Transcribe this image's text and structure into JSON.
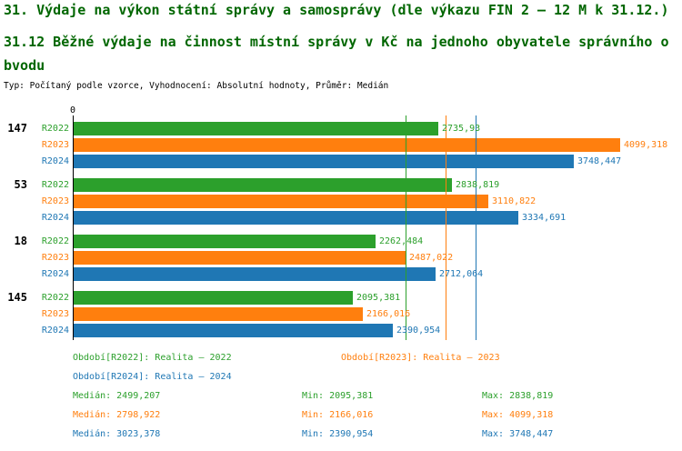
{
  "header": {
    "title": "31. Výdaje na výkon státní správy a samosprávy (dle výkazu FIN 2 – 12 M k 31.12.)",
    "subtitle": "31.12 Běžné výdaje na činnost místní správy v Kč na jednoho obyvatele správního obvodu",
    "meta": "Typ: Počítaný podle vzorce, Vyhodnocení: Absolutní hodnoty, Průměr: Medián"
  },
  "colors": {
    "title": "#006600",
    "axis": "#000000",
    "r2022": "#2ca02c",
    "r2023": "#ff7f0e",
    "r2024": "#1f77b4"
  },
  "chart_data": {
    "type": "bar",
    "orientation": "horizontal",
    "title": "31.12 Běžné výdaje na činnost místní správy v Kč na jednoho obyvatele správního obvodu",
    "axis_origin_label": "0",
    "grid": "median-lines-only",
    "categories": [
      "147",
      "53",
      "18",
      "145"
    ],
    "series": [
      {
        "name": "R2022",
        "color": "#2ca02c",
        "values": [
          2735.93,
          2838.819,
          2262.484,
          2095.381
        ],
        "labels": [
          "2735,93",
          "2838,819",
          "2262,484",
          "2095,381"
        ],
        "median": 2499.207
      },
      {
        "name": "R2023",
        "color": "#ff7f0e",
        "values": [
          4099.318,
          3110.822,
          2487.022,
          2166.016
        ],
        "labels": [
          "4099,318",
          "3110,822",
          "2487,022",
          "2166,016"
        ],
        "median": 2798.922
      },
      {
        "name": "R2024",
        "color": "#1f77b4",
        "values": [
          3748.447,
          3334.691,
          2712.064,
          2390.954
        ],
        "labels": [
          "3748,447",
          "3334,691",
          "2712,064",
          "2390,954"
        ],
        "median": 3023.378
      }
    ]
  },
  "footer": {
    "legend": [
      "Období[R2022]: Realita – 2022",
      "Období[R2023]: Realita – 2023",
      "Období[R2024]: Realita – 2024"
    ],
    "stats": [
      {
        "median": "Medián: 2499,207",
        "min": "Min: 2095,381",
        "max": "Max: 2838,819"
      },
      {
        "median": "Medián: 2798,922",
        "min": "Min: 2166,016",
        "max": "Max: 4099,318"
      },
      {
        "median": "Medián: 3023,378",
        "min": "Min: 2390,954",
        "max": "Max: 3748,447"
      }
    ]
  }
}
